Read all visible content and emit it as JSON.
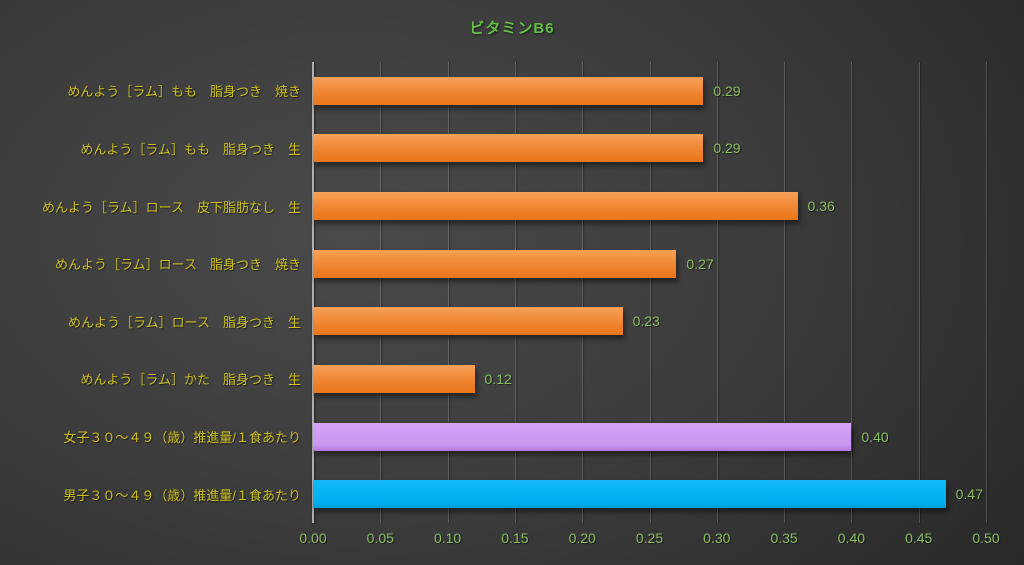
{
  "title": "ビタミンB6",
  "colors": {
    "title_green": "#64be46",
    "category_yellow": "#cdc11e",
    "value_green": "#8cbe62",
    "tick_green": "#8cbe62",
    "axis_gray": "#aeaeae",
    "bar_orange": "#ed7d31",
    "bar_purple": "#cc99f2",
    "bar_blue": "#00b0f0"
  },
  "chart_data": {
    "type": "bar",
    "orientation": "horizontal",
    "title": "ビタミンB6",
    "categories": [
      "めんよう［ラム］もも　脂身つき　焼き",
      "めんよう［ラム］もも　脂身つき　生",
      "めんよう［ラム］ロース　皮下脂肪なし　生",
      "めんよう［ラム］ロース　脂身つき　焼き",
      "めんよう［ラム］ロース　脂身つき　生",
      "めんよう［ラム］かた　脂身つき　生",
      "女子３０～４９（歳）推進量/１食あたり",
      "男子３０～４９（歳）推進量/１食あたり"
    ],
    "values": [
      0.29,
      0.29,
      0.36,
      0.27,
      0.23,
      0.12,
      0.4,
      0.47
    ],
    "value_labels": [
      "0.29",
      "0.29",
      "0.36",
      "0.27",
      "0.23",
      "0.12",
      "0.40",
      "0.47"
    ],
    "bar_colors": [
      "orange",
      "orange",
      "orange",
      "orange",
      "orange",
      "orange",
      "purple",
      "blue"
    ],
    "xlim": [
      0.0,
      0.5
    ],
    "x_ticks": [
      0.0,
      0.05,
      0.1,
      0.15,
      0.2,
      0.25,
      0.3,
      0.35,
      0.4,
      0.45,
      0.5
    ],
    "x_tick_labels": [
      "0.00",
      "0.05",
      "0.10",
      "0.15",
      "0.20",
      "0.25",
      "0.30",
      "0.35",
      "0.40",
      "0.45",
      "0.50"
    ],
    "grid": true,
    "legend": false,
    "data_labels": true
  }
}
